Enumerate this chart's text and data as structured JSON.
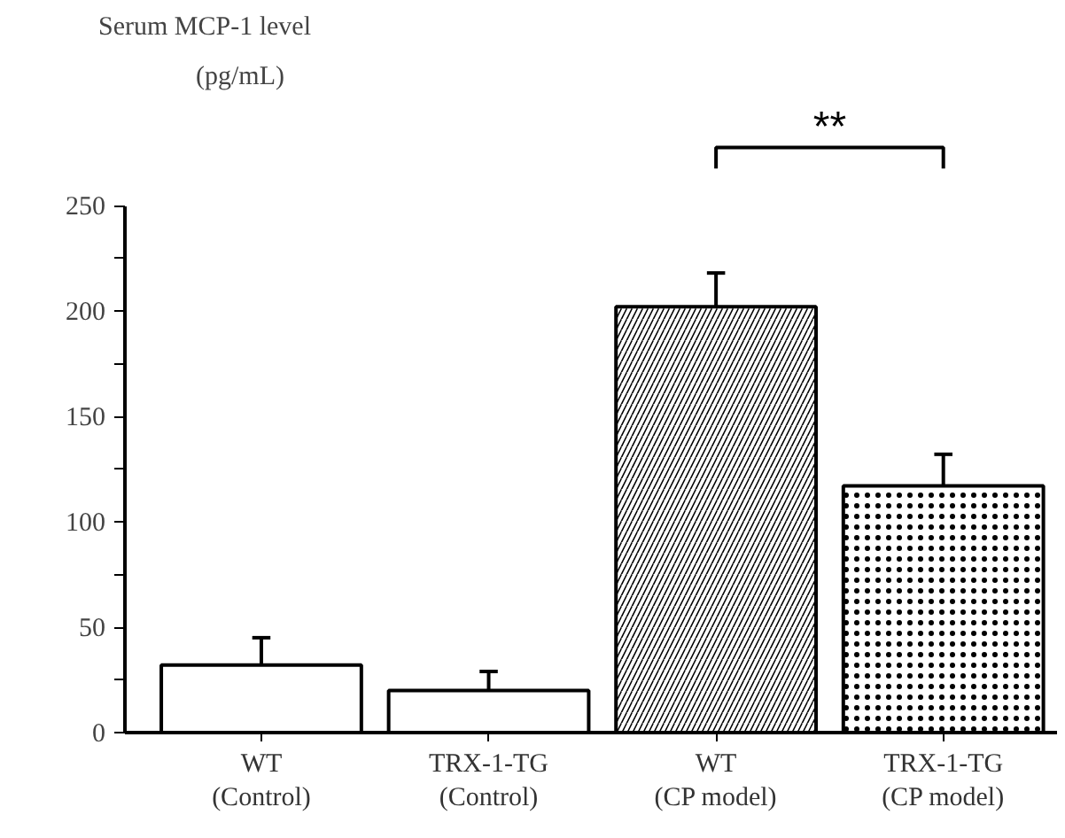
{
  "chart_data": {
    "type": "bar",
    "title": "Serum MCP-1 level",
    "ylabel": "(pg/mL)",
    "categories": [
      "WT\n(Control)",
      "TRX-1-TG\n(Control)",
      "WT\n(CP model)",
      "TRX-1-TG\n(CP model)"
    ],
    "values": [
      32,
      20,
      202,
      117
    ],
    "errors": [
      [
        32,
        45
      ],
      [
        20,
        29
      ],
      [
        202,
        218
      ],
      [
        117,
        132
      ]
    ],
    "colors": [
      "#ffffff",
      "#ffffff",
      "#ffffff",
      "#ffffff"
    ],
    "ylim": [
      0,
      250
    ],
    "yticks": [
      0,
      {
        "value": 25,
        "label": null
      },
      50,
      {
        "value": 75,
        "label": null
      },
      100,
      {
        "value": 125,
        "label": null
      },
      150,
      {
        "value": 175,
        "label": null
      },
      200,
      {
        "value": 225,
        "label": null
      },
      250
    ],
    "annotations": [
      "**"
    ],
    "grid": false
  }
}
